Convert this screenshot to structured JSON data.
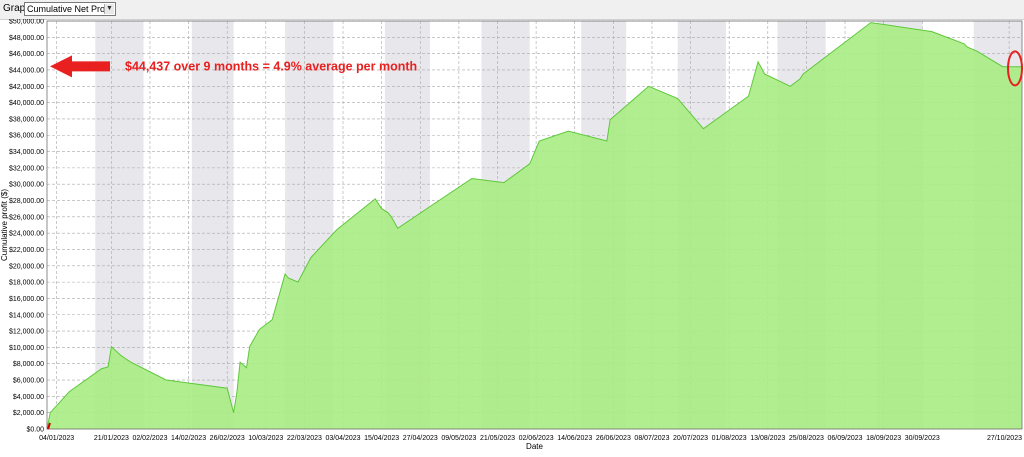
{
  "toolbar": {
    "label": "Graph",
    "selected_graph": "Cumulative Net Profit"
  },
  "colors": {
    "band": "#e8e8ec",
    "grid": "#a8a8a8",
    "area_fill": "#a8ec84",
    "area_line": "#5ec83a",
    "annotation": "#e82020",
    "start_tick": "#cc0000"
  },
  "annotation": {
    "text": "$44,437 over 9 months = 4.9% average per month",
    "arrow_target_y": 44437,
    "arrow_icon": "left-arrow-icon",
    "highlight_icon": "red-ellipse-icon"
  },
  "chart_data": {
    "type": "area",
    "xlabel": "Date",
    "ylabel": "Cumulative profit ($)",
    "ylim": [
      0,
      50000
    ],
    "xlim": [
      "2023-01-01",
      "2023-10-31"
    ],
    "yticks": [
      0,
      2000,
      4000,
      6000,
      8000,
      10000,
      12000,
      14000,
      16000,
      18000,
      20000,
      22000,
      24000,
      26000,
      28000,
      30000,
      32000,
      34000,
      36000,
      38000,
      40000,
      42000,
      44000,
      46000,
      48000,
      50000
    ],
    "ytick_labels": [
      "$0.00",
      "$2,000.00",
      "$4,000.00",
      "$6,000.00",
      "$8,000.00",
      "$10,000.00",
      "$12,000.00",
      "$14,000.00",
      "$16,000.00",
      "$18,000.00",
      "$20,000.00",
      "$22,000.00",
      "$24,000.00",
      "$26,000.00",
      "$28,000.00",
      "$30,000.00",
      "$32,000.00",
      "$34,000.00",
      "$36,000.00",
      "$38,000.00",
      "$40,000.00",
      "$42,000.00",
      "$44,000.00",
      "$46,000.00",
      "$48,000.00",
      "$50,000.00"
    ],
    "xticks": [
      "2023-01-04",
      "2023-01-21",
      "2023-02-02",
      "2023-02-14",
      "2023-02-26",
      "2023-03-10",
      "2023-03-22",
      "2023-04-03",
      "2023-04-15",
      "2023-04-27",
      "2023-05-09",
      "2023-05-21",
      "2023-06-02",
      "2023-06-14",
      "2023-06-26",
      "2023-07-08",
      "2023-07-20",
      "2023-08-01",
      "2023-08-13",
      "2023-08-25",
      "2023-09-06",
      "2023-09-18",
      "2023-09-30",
      "2023-10-27"
    ],
    "xtick_labels": [
      "04/01/2023",
      "21/01/2023",
      "02/02/2023",
      "14/02/2023",
      "26/02/2023",
      "10/03/2023",
      "22/03/2023",
      "03/04/2023",
      "15/04/2023",
      "27/04/2023",
      "09/05/2023",
      "21/05/2023",
      "02/06/2023",
      "14/06/2023",
      "26/06/2023",
      "08/07/2023",
      "20/07/2023",
      "01/08/2023",
      "13/08/2023",
      "25/08/2023",
      "06/09/2023",
      "18/09/2023",
      "30/09/2023",
      "27/10/2023"
    ],
    "grid": true,
    "shaded_bands": [
      [
        "2023-01-16",
        "2023-01-31"
      ],
      [
        "2023-02-15",
        "2023-02-28"
      ],
      [
        "2023-03-16",
        "2023-03-31"
      ],
      [
        "2023-04-16",
        "2023-04-30"
      ],
      [
        "2023-05-16",
        "2023-05-31"
      ],
      [
        "2023-06-16",
        "2023-06-30"
      ],
      [
        "2023-07-16",
        "2023-07-31"
      ],
      [
        "2023-08-16",
        "2023-08-31"
      ],
      [
        "2023-09-16",
        "2023-09-30"
      ],
      [
        "2023-10-16",
        "2023-10-31"
      ]
    ],
    "x": [
      "2023-01-01",
      "2023-01-02",
      "2023-01-08",
      "2023-01-18",
      "2023-01-20",
      "2023-01-21",
      "2023-01-24",
      "2023-01-27",
      "2023-02-07",
      "2023-02-26",
      "2023-02-28",
      "2023-03-01",
      "2023-03-02",
      "2023-03-04",
      "2023-03-05",
      "2023-03-08",
      "2023-03-12",
      "2023-03-16",
      "2023-03-17",
      "2023-03-20",
      "2023-03-24",
      "2023-04-01",
      "2023-04-13",
      "2023-04-15",
      "2023-04-17",
      "2023-04-18",
      "2023-04-20",
      "2023-05-13",
      "2023-05-23",
      "2023-05-31",
      "2023-06-03",
      "2023-06-12",
      "2023-06-24",
      "2023-06-25",
      "2023-07-07",
      "2023-07-16",
      "2023-07-24",
      "2023-08-07",
      "2023-08-10",
      "2023-08-12",
      "2023-08-20",
      "2023-08-23",
      "2023-08-24",
      "2023-09-14",
      "2023-10-03",
      "2023-10-13",
      "2023-10-14",
      "2023-10-17",
      "2023-10-25"
    ],
    "series": [
      {
        "values": [
          0,
          2000,
          4600,
          7400,
          7600,
          10100,
          9000,
          8200,
          6000,
          5000,
          2000,
          4500,
          8200,
          7500,
          10100,
          12200,
          13400,
          19000,
          18500,
          18000,
          21000,
          24400,
          28200,
          27000,
          26500,
          26000,
          24600,
          30700,
          30200,
          32500,
          35300,
          36500,
          35300,
          37900,
          42000,
          40500,
          36800,
          40800,
          45000,
          43500,
          42000,
          42900,
          43500,
          49800,
          48700,
          47200,
          46800,
          46300,
          44400
        ]
      }
    ]
  }
}
